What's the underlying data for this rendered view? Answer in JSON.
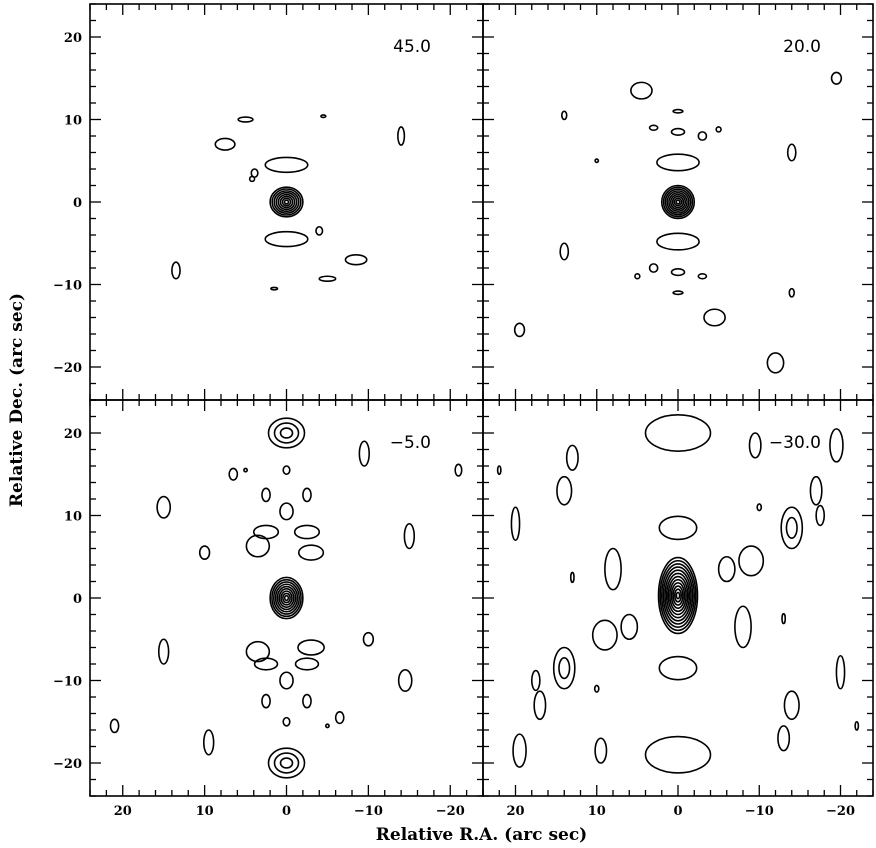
{
  "chart_data": {
    "type": "contour",
    "xlabel": "Relative R.A. (arc sec)",
    "ylabel": "Relative Dec. (arc sec)",
    "xlim": [
      24,
      -24
    ],
    "ylim": [
      -24,
      24
    ],
    "xticks": [
      20,
      10,
      0,
      -10,
      -20
    ],
    "yticks": [
      20,
      10,
      0,
      -10,
      -20
    ],
    "xtick_labels": [
      "20",
      "10",
      "0",
      "−10",
      "−20"
    ],
    "ytick_labels": [
      "20",
      "10",
      "0",
      "−10",
      "−20"
    ],
    "grid": false,
    "panels": [
      {
        "label": "45.0",
        "contours": [
          {
            "cx": 0,
            "cy": 0,
            "rx": 2.0,
            "ry": 1.8,
            "levels": 8
          },
          {
            "cx": 0,
            "cy": 4.5,
            "rx": 2.6,
            "ry": 0.9,
            "levels": 1
          },
          {
            "cx": 0,
            "cy": -4.5,
            "rx": 2.6,
            "ry": 0.9,
            "levels": 1
          },
          {
            "cx": -14,
            "cy": 8,
            "rx": 0.4,
            "ry": 1.1,
            "levels": 1
          },
          {
            "cx": 7.5,
            "cy": 7,
            "rx": 1.2,
            "ry": 0.7,
            "levels": 1
          },
          {
            "cx": 5,
            "cy": 10,
            "rx": 0.9,
            "ry": 0.3,
            "levels": 1
          },
          {
            "cx": 3.9,
            "cy": 3.5,
            "rx": 0.4,
            "ry": 0.5,
            "levels": 1
          },
          {
            "cx": 4.2,
            "cy": 2.8,
            "rx": 0.3,
            "ry": 0.3,
            "levels": 1
          },
          {
            "cx": -4,
            "cy": -3.5,
            "rx": 0.4,
            "ry": 0.5,
            "levels": 1
          },
          {
            "cx": -8.5,
            "cy": -7,
            "rx": 1.3,
            "ry": 0.6,
            "levels": 1
          },
          {
            "cx": -5,
            "cy": -9.3,
            "rx": 1.0,
            "ry": 0.3,
            "levels": 1
          },
          {
            "cx": 13.5,
            "cy": -8.3,
            "rx": 0.5,
            "ry": 1.0,
            "levels": 1
          },
          {
            "cx": 1.5,
            "cy": -10.5,
            "rx": 0.4,
            "ry": 0.15,
            "levels": 1
          },
          {
            "cx": -4.5,
            "cy": 10.4,
            "rx": 0.3,
            "ry": 0.15,
            "levels": 1
          }
        ]
      },
      {
        "label": "20.0",
        "contours": [
          {
            "cx": 0,
            "cy": 0,
            "rx": 2.0,
            "ry": 2.0,
            "levels": 9
          },
          {
            "cx": 0,
            "cy": 4.8,
            "rx": 2.6,
            "ry": 1.0,
            "levels": 1
          },
          {
            "cx": 0,
            "cy": -4.8,
            "rx": 2.6,
            "ry": 1.0,
            "levels": 1
          },
          {
            "cx": 0,
            "cy": 8.5,
            "rx": 0.8,
            "ry": 0.4,
            "levels": 1
          },
          {
            "cx": 0,
            "cy": -8.5,
            "rx": 0.8,
            "ry": 0.4,
            "levels": 1
          },
          {
            "cx": 0,
            "cy": 11,
            "rx": 0.6,
            "ry": 0.2,
            "levels": 1
          },
          {
            "cx": 0,
            "cy": -11,
            "rx": 0.6,
            "ry": 0.2,
            "levels": 1
          },
          {
            "cx": -3,
            "cy": 8,
            "rx": 0.5,
            "ry": 0.5,
            "levels": 1
          },
          {
            "cx": 3,
            "cy": -8,
            "rx": 0.5,
            "ry": 0.5,
            "levels": 1
          },
          {
            "cx": -14,
            "cy": 6,
            "rx": 0.5,
            "ry": 1.0,
            "levels": 1
          },
          {
            "cx": 14,
            "cy": -6,
            "rx": 0.5,
            "ry": 1.0,
            "levels": 1
          },
          {
            "cx": 4.5,
            "cy": 13.5,
            "rx": 1.3,
            "ry": 1.0,
            "levels": 1
          },
          {
            "cx": -4.5,
            "cy": -14,
            "rx": 1.3,
            "ry": 1.0,
            "levels": 1
          },
          {
            "cx": -19.5,
            "cy": 15,
            "rx": 0.6,
            "ry": 0.7,
            "levels": 1
          },
          {
            "cx": 19.5,
            "cy": -15.5,
            "rx": 0.6,
            "ry": 0.8,
            "levels": 1
          },
          {
            "cx": -12,
            "cy": -19.5,
            "rx": 1.0,
            "ry": 1.2,
            "levels": 1
          },
          {
            "cx": 14,
            "cy": 10.5,
            "rx": 0.3,
            "ry": 0.5,
            "levels": 1
          },
          {
            "cx": -14,
            "cy": -11,
            "rx": 0.3,
            "ry": 0.5,
            "levels": 1
          },
          {
            "cx": -5,
            "cy": 8.8,
            "rx": 0.3,
            "ry": 0.3,
            "levels": 1
          },
          {
            "cx": 5,
            "cy": -9,
            "rx": 0.3,
            "ry": 0.3,
            "levels": 1
          },
          {
            "cx": 10,
            "cy": 5,
            "rx": 0.2,
            "ry": 0.2,
            "levels": 1
          },
          {
            "cx": 3,
            "cy": 9,
            "rx": 0.5,
            "ry": 0.3,
            "levels": 1
          },
          {
            "cx": -3,
            "cy": -9,
            "rx": 0.5,
            "ry": 0.3,
            "levels": 1
          }
        ]
      },
      {
        "label": "−5.0",
        "contours": [
          {
            "cx": 0,
            "cy": 0,
            "rx": 2.0,
            "ry": 2.5,
            "levels": 9
          },
          {
            "cx": 0,
            "cy": 20,
            "rx": 2.2,
            "ry": 1.8,
            "levels": 3
          },
          {
            "cx": 0,
            "cy": -20,
            "rx": 2.2,
            "ry": 1.8,
            "levels": 3
          },
          {
            "cx": 0,
            "cy": 10.5,
            "rx": 0.8,
            "ry": 1.0,
            "levels": 1
          },
          {
            "cx": 0,
            "cy": -10,
            "rx": 0.8,
            "ry": 1.0,
            "levels": 1
          },
          {
            "cx": -2.5,
            "cy": 8,
            "rx": 1.5,
            "ry": 0.8,
            "levels": 1
          },
          {
            "cx": 2.5,
            "cy": 8,
            "rx": 1.5,
            "ry": 0.8,
            "levels": 1
          },
          {
            "cx": -3,
            "cy": 5.5,
            "rx": 1.5,
            "ry": 0.9,
            "levels": 1
          },
          {
            "cx": 3.5,
            "cy": 6.3,
            "rx": 1.4,
            "ry": 1.3,
            "levels": 1
          },
          {
            "cx": -3,
            "cy": -6,
            "rx": 1.6,
            "ry": 0.9,
            "levels": 1
          },
          {
            "cx": 3.5,
            "cy": -6.5,
            "rx": 1.4,
            "ry": 1.2,
            "levels": 1
          },
          {
            "cx": -2.5,
            "cy": -8,
            "rx": 1.4,
            "ry": 0.7,
            "levels": 1
          },
          {
            "cx": 2.5,
            "cy": -8,
            "rx": 1.4,
            "ry": 0.7,
            "levels": 1
          },
          {
            "cx": -2.5,
            "cy": 12.5,
            "rx": 0.5,
            "ry": 0.8,
            "levels": 1
          },
          {
            "cx": 2.5,
            "cy": 12.5,
            "rx": 0.5,
            "ry": 0.8,
            "levels": 1
          },
          {
            "cx": -2.5,
            "cy": -12.5,
            "rx": 0.5,
            "ry": 0.8,
            "levels": 1
          },
          {
            "cx": 2.5,
            "cy": -12.5,
            "rx": 0.5,
            "ry": 0.8,
            "levels": 1
          },
          {
            "cx": 0,
            "cy": 15.5,
            "rx": 0.4,
            "ry": 0.5,
            "levels": 1
          },
          {
            "cx": 0,
            "cy": -15,
            "rx": 0.4,
            "ry": 0.5,
            "levels": 1
          },
          {
            "cx": -9.5,
            "cy": 17.5,
            "rx": 0.6,
            "ry": 1.5,
            "levels": 1
          },
          {
            "cx": 6.5,
            "cy": 15,
            "rx": 0.5,
            "ry": 0.7,
            "levels": 1
          },
          {
            "cx": -15,
            "cy": 7.5,
            "rx": 0.6,
            "ry": 1.5,
            "levels": 1
          },
          {
            "cx": 15,
            "cy": 11,
            "rx": 0.8,
            "ry": 1.3,
            "levels": 1
          },
          {
            "cx": 10,
            "cy": 5.5,
            "rx": 0.6,
            "ry": 0.8,
            "levels": 1
          },
          {
            "cx": -10,
            "cy": -5,
            "rx": 0.6,
            "ry": 0.8,
            "levels": 1
          },
          {
            "cx": -14.5,
            "cy": -10,
            "rx": 0.8,
            "ry": 1.3,
            "levels": 1
          },
          {
            "cx": 15,
            "cy": -6.5,
            "rx": 0.6,
            "ry": 1.5,
            "levels": 1
          },
          {
            "cx": 9.5,
            "cy": -17.5,
            "rx": 0.6,
            "ry": 1.5,
            "levels": 1
          },
          {
            "cx": -6.5,
            "cy": -14.5,
            "rx": 0.5,
            "ry": 0.7,
            "levels": 1
          },
          {
            "cx": 21,
            "cy": -15.5,
            "rx": 0.5,
            "ry": 0.8,
            "levels": 1
          },
          {
            "cx": -21,
            "cy": 15.5,
            "rx": 0.4,
            "ry": 0.7,
            "levels": 1
          },
          {
            "cx": 5,
            "cy": 15.5,
            "rx": 0.2,
            "ry": 0.2,
            "levels": 1
          },
          {
            "cx": -5,
            "cy": -15.5,
            "rx": 0.2,
            "ry": 0.2,
            "levels": 1
          }
        ]
      },
      {
        "label": "−30.0",
        "contours": [
          {
            "cx": 0,
            "cy": 0.3,
            "rx": 2.4,
            "ry": 4.6,
            "levels": 12
          },
          {
            "cx": 0,
            "cy": 8.5,
            "rx": 2.3,
            "ry": 1.4,
            "levels": 1
          },
          {
            "cx": 0,
            "cy": -8.5,
            "rx": 2.3,
            "ry": 1.4,
            "levels": 1
          },
          {
            "cx": 0,
            "cy": 20,
            "rx": 4.0,
            "ry": 2.2,
            "levels": 1
          },
          {
            "cx": 0,
            "cy": -19,
            "rx": 4.0,
            "ry": 2.2,
            "levels": 1
          },
          {
            "cx": -9.5,
            "cy": 18.5,
            "rx": 0.7,
            "ry": 1.5,
            "levels": 1
          },
          {
            "cx": 9.5,
            "cy": -18.5,
            "rx": 0.7,
            "ry": 1.5,
            "levels": 1
          },
          {
            "cx": -14,
            "cy": 8.5,
            "rx": 1.3,
            "ry": 2.5,
            "levels": 2
          },
          {
            "cx": 14,
            "cy": -8.5,
            "rx": 1.3,
            "ry": 2.5,
            "levels": 2
          },
          {
            "cx": -9,
            "cy": 4.5,
            "rx": 1.5,
            "ry": 1.8,
            "levels": 1
          },
          {
            "cx": 9,
            "cy": -4.5,
            "rx": 1.5,
            "ry": 1.8,
            "levels": 1
          },
          {
            "cx": -6,
            "cy": 3.5,
            "rx": 1.0,
            "ry": 1.5,
            "levels": 1
          },
          {
            "cx": 6,
            "cy": -3.5,
            "rx": 1.0,
            "ry": 1.5,
            "levels": 1
          },
          {
            "cx": -8,
            "cy": -3.5,
            "rx": 1.0,
            "ry": 2.5,
            "levels": 1
          },
          {
            "cx": 8,
            "cy": 3.5,
            "rx": 1.0,
            "ry": 2.5,
            "levels": 1
          },
          {
            "cx": 14,
            "cy": 13,
            "rx": 0.9,
            "ry": 1.7,
            "levels": 1
          },
          {
            "cx": -14,
            "cy": -13,
            "rx": 0.9,
            "ry": 1.7,
            "levels": 1
          },
          {
            "cx": 20,
            "cy": 9,
            "rx": 0.5,
            "ry": 2.0,
            "levels": 1
          },
          {
            "cx": -20,
            "cy": -9,
            "rx": 0.5,
            "ry": 2.0,
            "levels": 1
          },
          {
            "cx": -19.5,
            "cy": 18.5,
            "rx": 0.8,
            "ry": 2.0,
            "levels": 1
          },
          {
            "cx": 19.5,
            "cy": -18.5,
            "rx": 0.8,
            "ry": 2.0,
            "levels": 1
          },
          {
            "cx": -17.5,
            "cy": 10,
            "rx": 0.5,
            "ry": 1.2,
            "levels": 1
          },
          {
            "cx": 17.5,
            "cy": -10,
            "rx": 0.5,
            "ry": 1.2,
            "levels": 1
          },
          {
            "cx": -13,
            "cy": -17,
            "rx": 0.7,
            "ry": 1.5,
            "levels": 1
          },
          {
            "cx": 13,
            "cy": 17,
            "rx": 0.7,
            "ry": 1.5,
            "levels": 1
          },
          {
            "cx": 17,
            "cy": -13,
            "rx": 0.7,
            "ry": 1.7,
            "levels": 1
          },
          {
            "cx": -17,
            "cy": 13,
            "rx": 0.7,
            "ry": 1.7,
            "levels": 1
          },
          {
            "cx": 22,
            "cy": 15.5,
            "rx": 0.2,
            "ry": 0.5,
            "levels": 1
          },
          {
            "cx": -22,
            "cy": -15.5,
            "rx": 0.2,
            "ry": 0.5,
            "levels": 1
          },
          {
            "cx": -10,
            "cy": 11,
            "rx": 0.25,
            "ry": 0.4,
            "levels": 1
          },
          {
            "cx": 10,
            "cy": -11,
            "rx": 0.25,
            "ry": 0.4,
            "levels": 1
          },
          {
            "cx": -13,
            "cy": -2.5,
            "rx": 0.2,
            "ry": 0.6,
            "levels": 1
          },
          {
            "cx": 13,
            "cy": 2.5,
            "rx": 0.2,
            "ry": 0.6,
            "levels": 1
          }
        ]
      }
    ]
  }
}
